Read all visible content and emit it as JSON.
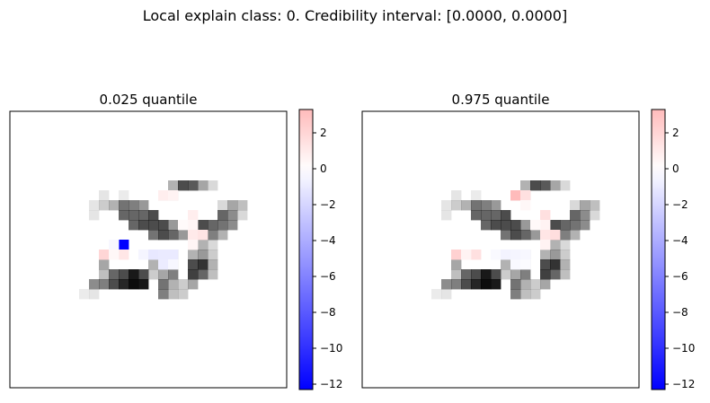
{
  "figure": {
    "suptitle": "Local explain class: 0. Credibility interval: [0.0000, 0.0000]"
  },
  "colors": {
    "background": "#ffffff",
    "digit_shade": "#000000",
    "neg_max": "#0000ff",
    "pos_max": "#ff0000",
    "neutral": "#ffffff",
    "frame": "#000000"
  },
  "chart_data": [
    {
      "type": "heatmap",
      "title": "0.025 quantile",
      "grid": false,
      "colorbar": {
        "cmap": "bwr",
        "vmin": -12.3,
        "vmax": 3.3,
        "ticks": [
          2,
          0,
          -2,
          -4,
          -6,
          -8,
          -10,
          -12
        ],
        "tick_labels": [
          "2",
          "0",
          "−2",
          "−4",
          "−6",
          "−8",
          "−10",
          "−12"
        ]
      },
      "image_size": [
        28,
        28
      ],
      "digit_pixels": [
        [
          7,
          18,
          0.08
        ],
        [
          8,
          18,
          0.1
        ],
        [
          8,
          17,
          0.45
        ],
        [
          9,
          17,
          0.5
        ],
        [
          10,
          17,
          0.7
        ],
        [
          11,
          17,
          0.85
        ],
        [
          12,
          17,
          0.95
        ],
        [
          13,
          17,
          0.9
        ],
        [
          9,
          16,
          0.25
        ],
        [
          10,
          16,
          0.6
        ],
        [
          11,
          16,
          0.7
        ],
        [
          12,
          16,
          0.9
        ],
        [
          13,
          16,
          0.7
        ],
        [
          9,
          15,
          0.35
        ],
        [
          8,
          9,
          0.1
        ],
        [
          8,
          10,
          0.1
        ],
        [
          9,
          9,
          0.2
        ],
        [
          9,
          8,
          0.1
        ],
        [
          10,
          9,
          0.3
        ],
        [
          11,
          9,
          0.55
        ],
        [
          12,
          9,
          0.5
        ],
        [
          13,
          9,
          0.4
        ],
        [
          11,
          8,
          0.08
        ],
        [
          11,
          10,
          0.6
        ],
        [
          12,
          10,
          0.6
        ],
        [
          13,
          10,
          0.6
        ],
        [
          14,
          10,
          0.7
        ],
        [
          12,
          11,
          0.6
        ],
        [
          13,
          11,
          0.7
        ],
        [
          14,
          11,
          0.7
        ],
        [
          15,
          11,
          0.7
        ],
        [
          16,
          11,
          0.4
        ],
        [
          17,
          11,
          0.25
        ],
        [
          14,
          12,
          0.55
        ],
        [
          15,
          12,
          0.7
        ],
        [
          16,
          12,
          0.6
        ],
        [
          17,
          12,
          0.4
        ],
        [
          15,
          16,
          0.35
        ],
        [
          14,
          16,
          0.2
        ],
        [
          16,
          16,
          0.5
        ],
        [
          16,
          15,
          0.3
        ],
        [
          16,
          14,
          0.3
        ],
        [
          14,
          15,
          0.3
        ],
        [
          15,
          15,
          0.2
        ],
        [
          15,
          17,
          0.55
        ],
        [
          16,
          17,
          0.3
        ],
        [
          17,
          17,
          0.2
        ],
        [
          16,
          18,
          0.25
        ],
        [
          17,
          18,
          0.2
        ],
        [
          15,
          18,
          0.5
        ],
        [
          18,
          13,
          0.2
        ],
        [
          19,
          13,
          0.3
        ],
        [
          20,
          13,
          0.15
        ],
        [
          18,
          14,
          0.3
        ],
        [
          19,
          14,
          0.4
        ],
        [
          20,
          14,
          0.2
        ],
        [
          18,
          15,
          0.7
        ],
        [
          19,
          15,
          0.8
        ],
        [
          20,
          15,
          0.3
        ],
        [
          18,
          16,
          0.75
        ],
        [
          19,
          16,
          0.6
        ],
        [
          20,
          16,
          0.25
        ],
        [
          18,
          17,
          0.35
        ],
        [
          19,
          12,
          0.5
        ],
        [
          19,
          11,
          0.7
        ],
        [
          20,
          11,
          0.6
        ],
        [
          20,
          12,
          0.5
        ],
        [
          21,
          12,
          0.3
        ],
        [
          21,
          11,
          0.55
        ],
        [
          22,
          11,
          0.45
        ],
        [
          22,
          10,
          0.45
        ],
        [
          21,
          10,
          0.6
        ],
        [
          23,
          10,
          0.15
        ],
        [
          22,
          9,
          0.35
        ],
        [
          23,
          9,
          0.25
        ],
        [
          21,
          9,
          0.15
        ],
        [
          17,
          7,
          0.7
        ],
        [
          18,
          7,
          0.65
        ],
        [
          19,
          7,
          0.35
        ],
        [
          16,
          7,
          0.3
        ],
        [
          20,
          7,
          0.15
        ],
        [
          15,
          8,
          0.2
        ],
        [
          16,
          8,
          0.2
        ]
      ],
      "attribution_pixels": [
        [
          11,
          13,
          -12.3
        ],
        [
          10,
          13,
          -0.4
        ],
        [
          9,
          14,
          2.0
        ],
        [
          11,
          14,
          1.2
        ],
        [
          10,
          14,
          0.4
        ],
        [
          13,
          14,
          -0.5
        ],
        [
          14,
          14,
          -1.1
        ],
        [
          15,
          14,
          -1.0
        ],
        [
          16,
          14,
          -1.0
        ],
        [
          15,
          15,
          -0.9
        ],
        [
          16,
          15,
          -0.4
        ],
        [
          15,
          8,
          0.8
        ],
        [
          16,
          8,
          0.6
        ],
        [
          18,
          10,
          0.8
        ],
        [
          18,
          11,
          0.5
        ],
        [
          18,
          12,
          1.0
        ],
        [
          19,
          12,
          1.3
        ],
        [
          18,
          13,
          0.5
        ],
        [
          17,
          11,
          0.25
        ]
      ]
    },
    {
      "type": "heatmap",
      "title": "0.975 quantile",
      "grid": false,
      "colorbar": {
        "cmap": "bwr",
        "vmin": -12.3,
        "vmax": 3.3,
        "ticks": [
          2,
          0,
          -2,
          -4,
          -6,
          -8,
          -10,
          -12
        ],
        "tick_labels": [
          "2",
          "0",
          "−2",
          "−4",
          "−6",
          "−8",
          "−10",
          "−12"
        ]
      },
      "image_size": [
        28,
        28
      ],
      "digit_pixels": [
        [
          7,
          18,
          0.08
        ],
        [
          8,
          18,
          0.1
        ],
        [
          8,
          17,
          0.45
        ],
        [
          9,
          17,
          0.5
        ],
        [
          10,
          17,
          0.7
        ],
        [
          11,
          17,
          0.85
        ],
        [
          12,
          17,
          0.95
        ],
        [
          13,
          17,
          0.9
        ],
        [
          9,
          16,
          0.25
        ],
        [
          10,
          16,
          0.6
        ],
        [
          11,
          16,
          0.7
        ],
        [
          12,
          16,
          0.9
        ],
        [
          13,
          16,
          0.7
        ],
        [
          9,
          15,
          0.35
        ],
        [
          8,
          9,
          0.1
        ],
        [
          8,
          10,
          0.1
        ],
        [
          9,
          9,
          0.2
        ],
        [
          9,
          8,
          0.1
        ],
        [
          10,
          9,
          0.3
        ],
        [
          11,
          9,
          0.55
        ],
        [
          12,
          9,
          0.5
        ],
        [
          13,
          9,
          0.4
        ],
        [
          11,
          8,
          0.08
        ],
        [
          11,
          10,
          0.6
        ],
        [
          12,
          10,
          0.6
        ],
        [
          13,
          10,
          0.6
        ],
        [
          14,
          10,
          0.7
        ],
        [
          12,
          11,
          0.6
        ],
        [
          13,
          11,
          0.7
        ],
        [
          14,
          11,
          0.7
        ],
        [
          15,
          11,
          0.7
        ],
        [
          16,
          11,
          0.4
        ],
        [
          17,
          11,
          0.25
        ],
        [
          14,
          12,
          0.55
        ],
        [
          15,
          12,
          0.7
        ],
        [
          16,
          12,
          0.6
        ],
        [
          17,
          12,
          0.4
        ],
        [
          15,
          16,
          0.35
        ],
        [
          14,
          16,
          0.2
        ],
        [
          16,
          16,
          0.5
        ],
        [
          16,
          15,
          0.3
        ],
        [
          16,
          14,
          0.3
        ],
        [
          14,
          15,
          0.3
        ],
        [
          15,
          15,
          0.2
        ],
        [
          15,
          17,
          0.55
        ],
        [
          16,
          17,
          0.3
        ],
        [
          17,
          17,
          0.2
        ],
        [
          16,
          18,
          0.25
        ],
        [
          17,
          18,
          0.2
        ],
        [
          15,
          18,
          0.5
        ],
        [
          18,
          13,
          0.2
        ],
        [
          19,
          13,
          0.3
        ],
        [
          20,
          13,
          0.15
        ],
        [
          18,
          14,
          0.3
        ],
        [
          19,
          14,
          0.4
        ],
        [
          20,
          14,
          0.2
        ],
        [
          18,
          15,
          0.7
        ],
        [
          19,
          15,
          0.8
        ],
        [
          20,
          15,
          0.3
        ],
        [
          18,
          16,
          0.75
        ],
        [
          19,
          16,
          0.6
        ],
        [
          20,
          16,
          0.25
        ],
        [
          18,
          17,
          0.35
        ],
        [
          19,
          12,
          0.5
        ],
        [
          19,
          11,
          0.7
        ],
        [
          20,
          11,
          0.6
        ],
        [
          20,
          12,
          0.5
        ],
        [
          21,
          12,
          0.3
        ],
        [
          21,
          11,
          0.55
        ],
        [
          22,
          11,
          0.45
        ],
        [
          22,
          10,
          0.45
        ],
        [
          21,
          10,
          0.6
        ],
        [
          23,
          10,
          0.15
        ],
        [
          22,
          9,
          0.35
        ],
        [
          23,
          9,
          0.25
        ],
        [
          21,
          9,
          0.15
        ],
        [
          17,
          7,
          0.7
        ],
        [
          18,
          7,
          0.65
        ],
        [
          19,
          7,
          0.35
        ],
        [
          16,
          7,
          0.3
        ],
        [
          20,
          7,
          0.15
        ],
        [
          15,
          8,
          0.2
        ],
        [
          16,
          8,
          0.2
        ]
      ],
      "attribution_pixels": [
        [
          9,
          14,
          2.2
        ],
        [
          11,
          14,
          1.5
        ],
        [
          10,
          14,
          0.6
        ],
        [
          13,
          14,
          -0.3
        ],
        [
          14,
          14,
          -0.6
        ],
        [
          15,
          14,
          -0.5
        ],
        [
          16,
          14,
          -0.4
        ],
        [
          15,
          15,
          -0.3
        ],
        [
          16,
          15,
          -0.2
        ],
        [
          15,
          8,
          3.3
        ],
        [
          16,
          8,
          1.5
        ],
        [
          18,
          10,
          1.5
        ],
        [
          18,
          11,
          0.6
        ],
        [
          18,
          12,
          1.2
        ],
        [
          19,
          12,
          1.6
        ],
        [
          18,
          13,
          0.6
        ],
        [
          17,
          11,
          0.3
        ],
        [
          16,
          9,
          0.4
        ]
      ]
    }
  ]
}
